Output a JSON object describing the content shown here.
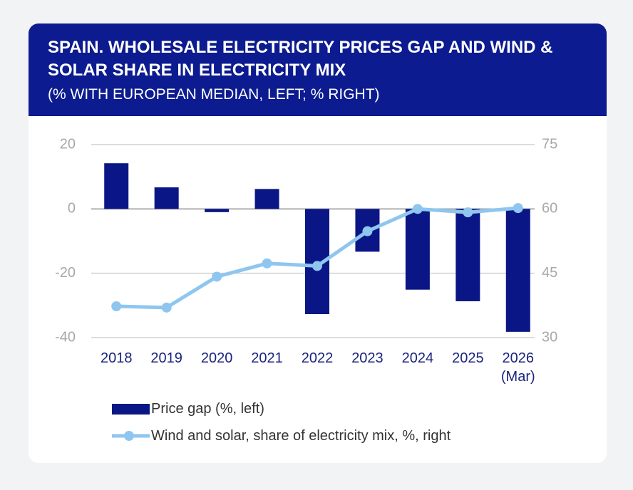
{
  "chart_data": {
    "type": "bar_line",
    "title": "SPAIN. WHOLESALE ELECTRICITY PRICES GAP AND WIND & SOLAR SHARE IN ELECTRICITY MIX",
    "subtitle": "(% WITH EUROPEAN MEDIAN, LEFT; % RIGHT)",
    "categories": [
      "2018",
      "2019",
      "2020",
      "2021",
      "2022",
      "2023",
      "2024",
      "2025",
      "2026 (Mar)"
    ],
    "series": [
      {
        "name": "Price gap (%, left)",
        "type": "bar",
        "color": "#0a1685",
        "values": [
          14.2,
          6.7,
          -1,
          6.2,
          -32.7,
          -13.3,
          -25.1,
          -28.7,
          -38.2
        ]
      },
      {
        "name": "Wind and solar, share of electricity mix, %, right",
        "type": "line",
        "axis": "y2",
        "color": "#8ec6f0",
        "values": [
          37.3,
          37,
          44.2,
          47.3,
          46.7,
          54.8,
          60,
          59.2,
          60.2
        ]
      }
    ],
    "ylim": [
      -40,
      20
    ],
    "yticks": [
      -40,
      -20,
      0,
      20
    ],
    "y2lim": [
      30,
      75
    ],
    "y2ticks": [
      30,
      45,
      60,
      75
    ],
    "grid": true
  }
}
